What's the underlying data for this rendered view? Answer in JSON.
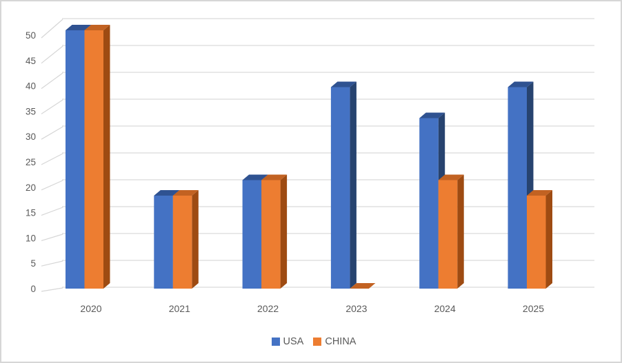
{
  "window": {
    "background": "#FFFFFF",
    "border_color": "#D6D6D6"
  },
  "chart_data": {
    "type": "bar",
    "subtype": "3d-clustered-column",
    "title": "",
    "xlabel": "",
    "ylabel": "",
    "categories": [
      "2020",
      "2021",
      "2022",
      "2023",
      "2024",
      "2025"
    ],
    "series": [
      {
        "name": "USA",
        "values": [
          50,
          18,
          21,
          39,
          33,
          39
        ],
        "color": "#4472C4",
        "color_top": "#2F5291",
        "color_side": "#27436F"
      },
      {
        "name": "CHINA",
        "values": [
          50,
          18,
          21,
          0,
          21,
          18
        ],
        "color": "#ED7D31",
        "color_top": "#C26222",
        "color_side": "#9E4B12"
      }
    ],
    "ylim": [
      0,
      50
    ],
    "ytick_step": 5,
    "yticks": [
      50,
      45,
      40,
      35,
      30,
      25,
      20,
      15,
      10,
      5,
      0
    ],
    "grid": true,
    "gridline_color": "#D9D9D9",
    "tick_color": "#D6D6D6",
    "axis_text_color": "#595959",
    "legend_position": "bottom"
  },
  "legend": {
    "items": [
      {
        "label": "USA",
        "color": "#4472C4"
      },
      {
        "label": "CHINA",
        "color": "#ED7D31"
      }
    ]
  }
}
